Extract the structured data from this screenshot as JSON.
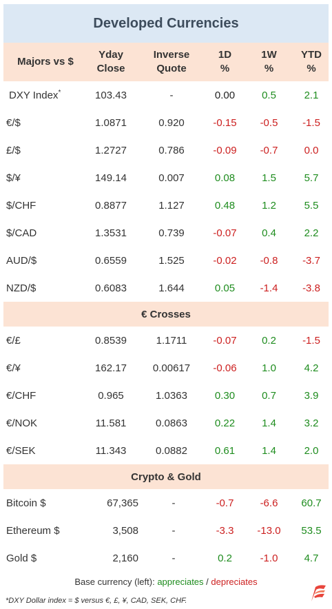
{
  "title": "Developed Currencies",
  "headers": {
    "pair": "Majors vs $",
    "close_1": "Yday",
    "close_2": "Close",
    "inverse_1": "Inverse",
    "inverse_2": "Quote",
    "d1_1": "1D",
    "d1_2": "%",
    "w1_1": "1W",
    "w1_2": "%",
    "ytd_1": "YTD",
    "ytd_2": "%"
  },
  "majors": [
    {
      "pair": "DXY Index",
      "sup": "*",
      "close": "103.43",
      "inverse": "-",
      "d1": "0.00",
      "w1": "0.5",
      "ytd": "2.1",
      "d1c": "neu",
      "w1c": "pos",
      "ytdc": "pos"
    },
    {
      "pair": "€/$",
      "sup": "",
      "close": "1.0871",
      "inverse": "0.920",
      "d1": "-0.15",
      "w1": "-0.5",
      "ytd": "-1.5",
      "d1c": "neg",
      "w1c": "neg",
      "ytdc": "neg"
    },
    {
      "pair": "£/$",
      "sup": "",
      "close": "1.2727",
      "inverse": "0.786",
      "d1": "-0.09",
      "w1": "-0.7",
      "ytd": "0.0",
      "d1c": "neg",
      "w1c": "neg",
      "ytdc": "neg"
    },
    {
      "pair": "$/¥",
      "sup": "",
      "close": "149.14",
      "inverse": "0.007",
      "d1": "0.08",
      "w1": "1.5",
      "ytd": "5.7",
      "d1c": "pos",
      "w1c": "pos",
      "ytdc": "pos"
    },
    {
      "pair": "$/CHF",
      "sup": "",
      "close": "0.8877",
      "inverse": "1.127",
      "d1": "0.48",
      "w1": "1.2",
      "ytd": "5.5",
      "d1c": "pos",
      "w1c": "pos",
      "ytdc": "pos"
    },
    {
      "pair": "$/CAD",
      "sup": "",
      "close": "1.3531",
      "inverse": "0.739",
      "d1": "-0.07",
      "w1": "0.4",
      "ytd": "2.2",
      "d1c": "neg",
      "w1c": "pos",
      "ytdc": "pos"
    },
    {
      "pair": "AUD/$",
      "sup": "",
      "close": "0.6559",
      "inverse": "1.525",
      "d1": "-0.02",
      "w1": "-0.8",
      "ytd": "-3.7",
      "d1c": "neg",
      "w1c": "neg",
      "ytdc": "neg"
    },
    {
      "pair": "NZD/$",
      "sup": "",
      "close": "0.6083",
      "inverse": "1.644",
      "d1": "0.05",
      "w1": "-1.4",
      "ytd": "-3.8",
      "d1c": "pos",
      "w1c": "neg",
      "ytdc": "neg"
    }
  ],
  "crosses_title": "€ Crosses",
  "crosses": [
    {
      "pair": "€/£",
      "close": "0.8539",
      "inverse": "1.1711",
      "d1": "-0.07",
      "w1": "0.2",
      "ytd": "-1.5",
      "d1c": "neg",
      "w1c": "pos",
      "ytdc": "neg"
    },
    {
      "pair": "€/¥",
      "close": "162.17",
      "inverse": "0.00617",
      "d1": "-0.06",
      "w1": "1.0",
      "ytd": "4.2",
      "d1c": "neg",
      "w1c": "pos",
      "ytdc": "pos"
    },
    {
      "pair": "€/CHF",
      "close": "0.965",
      "inverse": "1.0363",
      "d1": "0.30",
      "w1": "0.7",
      "ytd": "3.9",
      "d1c": "pos",
      "w1c": "pos",
      "ytdc": "pos"
    },
    {
      "pair": "€/NOK",
      "close": "11.581",
      "inverse": "0.0863",
      "d1": "0.22",
      "w1": "1.4",
      "ytd": "3.2",
      "d1c": "pos",
      "w1c": "pos",
      "ytdc": "pos"
    },
    {
      "pair": "€/SEK",
      "close": "11.343",
      "inverse": "0.0882",
      "d1": "0.61",
      "w1": "1.4",
      "ytd": "2.0",
      "d1c": "pos",
      "w1c": "pos",
      "ytdc": "pos"
    }
  ],
  "crypto_title": "Crypto  &  Gold",
  "crypto": [
    {
      "pair": "Bitcoin $",
      "close": "67,365",
      "inverse": "-",
      "d1": "-0.7",
      "w1": "-6.6",
      "ytd": "60.7",
      "d1c": "neg",
      "w1c": "neg",
      "ytdc": "pos"
    },
    {
      "pair": "Ethereum $",
      "close": "3,508",
      "inverse": "-",
      "d1": "-3.3",
      "w1": "-13.0",
      "ytd": "53.5",
      "d1c": "neg",
      "w1c": "neg",
      "ytdc": "pos"
    },
    {
      "pair": "Gold $",
      "close": "2,160",
      "inverse": "-",
      "d1": "0.2",
      "w1": "-1.0",
      "ytd": "4.7",
      "d1c": "pos",
      "w1c": "neg",
      "ytdc": "pos"
    }
  ],
  "legend": {
    "prefix": "Base currency (left):  ",
    "appreciates": "appreciates",
    "sep": " / ",
    "depreciates": "depreciates"
  },
  "footnote": "*DXY Dollar index = $ versus €, £, ¥, CAD, SEK, CHF.",
  "colors": {
    "positive": "#1e8c1e",
    "negative": "#cc1f1f",
    "header_bg": "#fce3d4",
    "title_bg": "#dce8f4"
  },
  "logo_icon": "flag-logo-icon"
}
